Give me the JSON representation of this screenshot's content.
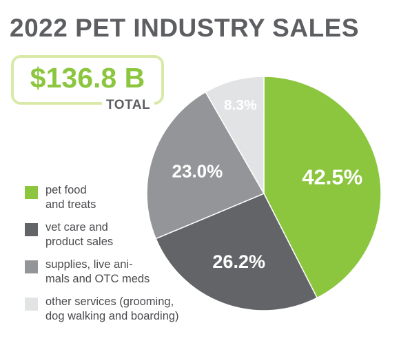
{
  "title": "2022 PET INDUSTRY SALES",
  "total": {
    "value": "$136.8 B",
    "label": "TOTAL"
  },
  "colors": {
    "title": "#5d5e61",
    "accent_green": "#8cc63f",
    "box_border": "#d8e9a8"
  },
  "chart_data": {
    "type": "pie",
    "title": "2022 PET INDUSTRY SALES",
    "legend_position": "left",
    "slices": [
      {
        "label": "pet food and treats",
        "legend_lines": [
          "pet food",
          "and treats"
        ],
        "value": 42.5,
        "display": "42.5%",
        "color": "#8cc63f"
      },
      {
        "label": "vet care and product sales",
        "legend_lines": [
          "vet care and",
          "product sales"
        ],
        "value": 26.2,
        "display": "26.2%",
        "color": "#636467"
      },
      {
        "label": "supplies, live animals and OTC meds",
        "legend_lines": [
          "supplies, live ani-",
          "mals and OTC meds"
        ],
        "value": 23.0,
        "display": "23.0%",
        "color": "#939598"
      },
      {
        "label": "other services (grooming, dog walking and boarding)",
        "legend_lines": [
          "other services (grooming,",
          "dog walking and boarding)"
        ],
        "value": 8.3,
        "display": "8.3%",
        "color": "#e2e3e5"
      }
    ]
  }
}
